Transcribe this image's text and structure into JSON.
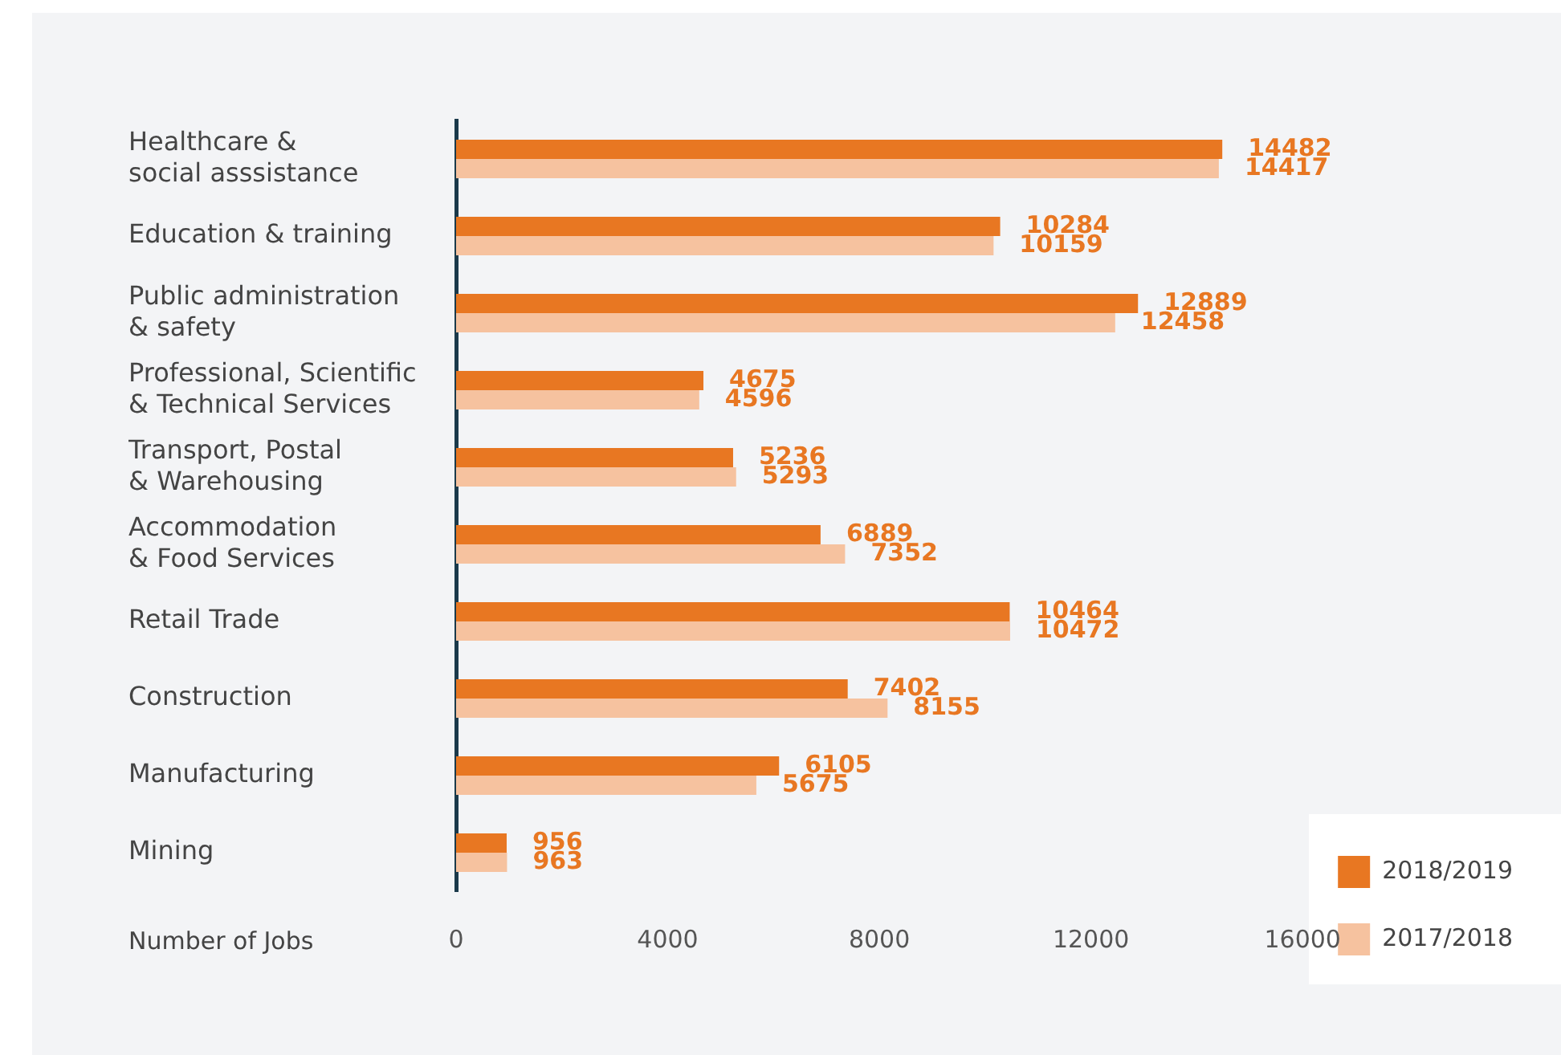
{
  "chart_data": {
    "type": "bar",
    "orientation": "horizontal",
    "xlabel": "Number of Jobs",
    "categories": [
      "Healthcare &\nsocial asssistance",
      "Education & training",
      "Public administration\n& safety",
      "Professional, Scientific\n& Technical Services",
      "Transport, Postal\n& Warehousing",
      "Accommodation\n& Food Services",
      "Retail Trade",
      "Construction",
      "Manufacturing",
      "Mining"
    ],
    "series": [
      {
        "name": "2018/2019",
        "color": "#e87722",
        "values": [
          14482,
          10284,
          12889,
          4675,
          5236,
          6889,
          10464,
          7402,
          6105,
          956
        ]
      },
      {
        "name": "2017/2018",
        "color": "#f6c29f",
        "values": [
          14417,
          10159,
          12458,
          4596,
          5293,
          7352,
          10472,
          8155,
          5675,
          963
        ]
      }
    ],
    "xlim": [
      0,
      16000
    ],
    "xticks": [
      0,
      4000,
      8000,
      12000,
      16000
    ],
    "grid": false,
    "legend": "bottom right",
    "data_labels": true
  }
}
